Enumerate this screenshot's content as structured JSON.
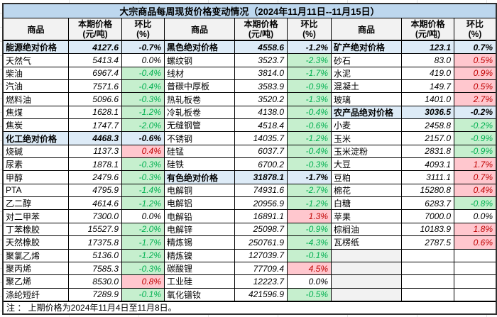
{
  "title": "大宗商品每周现货价格变动情况（2024年11月11日--11月15日）",
  "note": "注 ： 上期价格为2024年11月4日至11月8日。",
  "columns": {
    "name": "商品",
    "price_line1": "本期价格",
    "price_line2": "(元/吨)",
    "pct_line1": "环比",
    "pct_line2": "(%)"
  },
  "colors": {
    "title_bg": "#BDD7EE",
    "header_bg": "#F2F2F2",
    "category_bg": "#DDEBF7",
    "down_bg": "#C6EFCE",
    "down_text": "#00B050",
    "up_bg": "#FFC7CE",
    "up_text": "#C00000",
    "border": "#000000",
    "outer_border": "#2f2f2f",
    "grid_line": "#e4e4e4"
  },
  "groups": [
    {
      "rows": [
        {
          "name": "能源绝对价格",
          "price": "4127.6",
          "pct": "-0.7%",
          "type": "category",
          "trend": "down"
        },
        {
          "name": "天然气",
          "price": "5413.4",
          "pct": "0.0%",
          "type": "item",
          "trend": "flat"
        },
        {
          "name": "柴油",
          "price": "6967.4",
          "pct": "-0.4%",
          "type": "item",
          "trend": "down"
        },
        {
          "name": "汽油",
          "price": "7571.6",
          "pct": "-0.4%",
          "type": "item",
          "trend": "down"
        },
        {
          "name": "燃料油",
          "price": "5096.6",
          "pct": "-0.3%",
          "type": "item",
          "trend": "down"
        },
        {
          "name": "焦煤",
          "price": "1628.1",
          "pct": "-1.2%",
          "type": "item",
          "trend": "down"
        },
        {
          "name": "焦炭",
          "price": "1747.7",
          "pct": "-2.0%",
          "type": "item",
          "trend": "down"
        },
        {
          "name": "化工绝对价格",
          "price": "4468.3",
          "pct": "-0.6%",
          "type": "category",
          "trend": "down"
        },
        {
          "name": "烧碱",
          "price": "1137.3",
          "pct": "0.4%",
          "type": "item",
          "trend": "up"
        },
        {
          "name": "尿素",
          "price": "1878.1",
          "pct": "-0.3%",
          "type": "item",
          "trend": "down"
        },
        {
          "name": "甲醇",
          "price": "2479.6",
          "pct": "-0.3%",
          "type": "item",
          "trend": "down"
        },
        {
          "name": "PTA",
          "price": "4795.9",
          "pct": "-1.4%",
          "type": "item",
          "trend": "down"
        },
        {
          "name": "乙二醇",
          "price": "4614.6",
          "pct": "-1.2%",
          "type": "item",
          "trend": "down"
        },
        {
          "name": "对二甲苯",
          "price": "7300.0",
          "pct": "0.0%",
          "type": "item",
          "trend": "flat"
        },
        {
          "name": "丁苯橡胶",
          "price": "15527.9",
          "pct": "-2.0%",
          "type": "item",
          "trend": "down"
        },
        {
          "name": "天然橡胶",
          "price": "17375.8",
          "pct": "-1.7%",
          "type": "item",
          "trend": "down"
        },
        {
          "name": "聚氯乙烯",
          "price": "5136.0",
          "pct": "-1.2%",
          "type": "item",
          "trend": "down"
        },
        {
          "name": "聚丙烯",
          "price": "7585.3",
          "pct": "-0.3%",
          "type": "item",
          "trend": "down"
        },
        {
          "name": "聚乙烯",
          "price": "8530.0",
          "pct": "0.8%",
          "type": "item",
          "trend": "up"
        },
        {
          "name": "涤纶短纤",
          "price": "7289.9",
          "pct": "-0.1%",
          "type": "item",
          "trend": "down"
        }
      ]
    },
    {
      "rows": [
        {
          "name": "黑色绝对价格",
          "price": "4558.6",
          "pct": "-1.2%",
          "type": "category",
          "trend": "down"
        },
        {
          "name": "螺纹钢",
          "price": "3523.7",
          "pct": "-2.3%",
          "type": "item",
          "trend": "down"
        },
        {
          "name": "线材",
          "price": "3814.0",
          "pct": "-1.7%",
          "type": "item",
          "trend": "down"
        },
        {
          "name": "普碳中厚板",
          "price": "3583.9",
          "pct": "-0.9%",
          "type": "item",
          "trend": "down"
        },
        {
          "name": "热轧板卷",
          "price": "3520.2",
          "pct": "-1.3%",
          "type": "item",
          "trend": "down"
        },
        {
          "name": "冷轧板卷",
          "price": "4138.0",
          "pct": "-0.4%",
          "type": "item",
          "trend": "down"
        },
        {
          "name": "无缝钢管",
          "price": "4518.4",
          "pct": "-0.6%",
          "type": "item",
          "trend": "down"
        },
        {
          "name": "不锈钢",
          "price": "14035.7",
          "pct": "-1.2%",
          "type": "item",
          "trend": "down"
        },
        {
          "name": "硅锰",
          "price": "6037.7",
          "pct": "-0.4%",
          "type": "item",
          "trend": "down"
        },
        {
          "name": "硅铁",
          "price": "6700.2",
          "pct": "-0.3%",
          "type": "item",
          "trend": "down"
        },
        {
          "name": "有色绝对价格",
          "price": "31878.1",
          "pct": "-1.7%",
          "type": "category",
          "trend": "down"
        },
        {
          "name": "电解铜",
          "price": "74931.6",
          "pct": "-2.7%",
          "type": "item",
          "trend": "down"
        },
        {
          "name": "电解铝",
          "price": "20956.9",
          "pct": "-1.2%",
          "type": "item",
          "trend": "down"
        },
        {
          "name": "电解铅",
          "price": "16891.1",
          "pct": "1.3%",
          "type": "item",
          "trend": "up"
        },
        {
          "name": "电解锌",
          "price": "25098.7",
          "pct": "-0.9%",
          "type": "item",
          "trend": "down"
        },
        {
          "name": "精炼锡",
          "price": "250761.9",
          "pct": "-4.3%",
          "type": "item",
          "trend": "down"
        },
        {
          "name": "精炼镍",
          "price": "127039.7",
          "pct": "-0.1%",
          "type": "item",
          "trend": "down"
        },
        {
          "name": "碳酸锂",
          "price": "77709.4",
          "pct": "4.5%",
          "type": "item",
          "trend": "up"
        },
        {
          "name": "工业硅",
          "price": "12223.7",
          "pct": "0.0%",
          "type": "item",
          "trend": "flat"
        },
        {
          "name": "氧化镨钕",
          "price": "421596.9",
          "pct": "-0.5%",
          "type": "item",
          "trend": "down"
        }
      ]
    },
    {
      "rows": [
        {
          "name": "矿产绝对价格",
          "price": "123.1",
          "pct": "0.7%",
          "type": "category",
          "trend": "up"
        },
        {
          "name": "砂石",
          "price": "83.0",
          "pct": "0.5%",
          "type": "item",
          "trend": "up"
        },
        {
          "name": "水泥",
          "price": "419.0",
          "pct": "0.9%",
          "type": "item",
          "trend": "up"
        },
        {
          "name": "混凝土",
          "price": "149.7",
          "pct": "0.5%",
          "type": "item",
          "trend": "up"
        },
        {
          "name": "玻璃",
          "price": "1401.0",
          "pct": "2.7%",
          "type": "item",
          "trend": "up"
        },
        {
          "name": "农产品绝对价格",
          "price": "3036.5",
          "pct": "-0.2%",
          "type": "category",
          "trend": "down"
        },
        {
          "name": "小麦",
          "price": "2458.8",
          "pct": "-0.2%",
          "type": "item",
          "trend": "down"
        },
        {
          "name": "玉米",
          "price": "2157.0",
          "pct": "-0.9%",
          "type": "item",
          "trend": "down"
        },
        {
          "name": "玉米淀粉",
          "price": "2831.8",
          "pct": "-0.9%",
          "type": "item",
          "trend": "down"
        },
        {
          "name": "大豆",
          "price": "4093.1",
          "pct": "1.7%",
          "type": "item",
          "trend": "up"
        },
        {
          "name": "豆粕",
          "price": "3111.1",
          "pct": "0.7%",
          "type": "item",
          "trend": "up"
        },
        {
          "name": "棉花",
          "price": "15280.8",
          "pct": "0.4%",
          "type": "item",
          "trend": "up"
        },
        {
          "name": "白糖",
          "price": "6283.7",
          "pct": "-0.8%",
          "type": "item",
          "trend": "down"
        },
        {
          "name": "苹果",
          "price": "7000.0",
          "pct": "0.0%",
          "type": "item",
          "trend": "flat"
        },
        {
          "name": "棕榈油",
          "price": "10183.9",
          "pct": "1.8%",
          "type": "item",
          "trend": "up"
        },
        {
          "name": "瓦楞纸",
          "price": "2787.5",
          "pct": "0.6%",
          "type": "item",
          "trend": "up"
        },
        {
          "name": "",
          "price": "",
          "pct": "",
          "type": "empty",
          "trend": "flat"
        },
        {
          "name": "",
          "price": "",
          "pct": "",
          "type": "empty",
          "trend": "flat"
        },
        {
          "name": "",
          "price": "",
          "pct": "",
          "type": "empty",
          "trend": "flat"
        },
        {
          "name": "",
          "price": "",
          "pct": "",
          "type": "empty",
          "trend": "flat"
        }
      ]
    }
  ]
}
